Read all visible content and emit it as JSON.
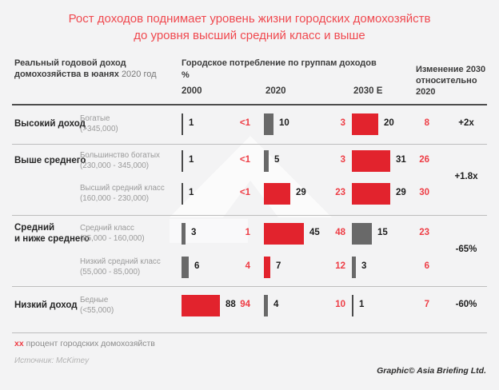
{
  "title": {
    "line1": "Рост доходов поднимает уровень жизни городских домохозяйств",
    "line2": "до уровня высший средний класс и выше"
  },
  "headers": {
    "income_line1": "Реальный годовой доход",
    "income_line2": "домохозяйства в юанях",
    "income_year": "2020 год",
    "consumption": "Городское потребление по группам доходов",
    "unit": "%",
    "change": "Изменение 2030 относительно 2020"
  },
  "footer": {
    "legend_marker": "xx",
    "legend_text": "процент городских домохозяйств",
    "source": "Источник: McKimey",
    "credit": "Graphic© Asia Briefing Ltd."
  },
  "colors": {
    "accent_red_bar": "#e2232d",
    "red_text": "#ee3d45",
    "gray_bar": "#696969",
    "dark_bar": "#4a4a4a",
    "title_red": "#f0494f"
  },
  "chart_data": {
    "type": "bar",
    "title": "Городское потребление по группам доходов",
    "unit": "%",
    "years": [
      "2000",
      "2020",
      "2030 E"
    ],
    "change_label": "Изменение 2030 относительно 2020",
    "note": "xx процент городских домохозяйств",
    "groups": [
      {
        "label_lines": [
          "Высокий доход"
        ],
        "change": "+2x",
        "segments": [
          {
            "name": "Богатые",
            "range": "(>345,000)",
            "consumption": {
              "y2000": "1",
              "y2020": "10",
              "y2030": "20"
            },
            "households": {
              "hh2020": "<1",
              "hh2030": "3",
              "hh_right": "8"
            },
            "bar_styles": [
              "dark",
              "gray",
              "red"
            ]
          }
        ]
      },
      {
        "label_lines": [
          "Выше среднего"
        ],
        "change": "+1.8x",
        "segments": [
          {
            "name": "Большинство богатых",
            "range": "(230,000 - 345,000)",
            "consumption": {
              "y2000": "1",
              "y2020": "5",
              "y2030": "31"
            },
            "households": {
              "hh2020": "<1",
              "hh2030": "3",
              "hh_right": "26"
            },
            "bar_styles": [
              "dark",
              "gray",
              "red"
            ]
          },
          {
            "name": "Высший средний класс",
            "range": "(160,000 - 230,000)",
            "consumption": {
              "y2000": "1",
              "y2020": "29",
              "y2030": "29"
            },
            "households": {
              "hh2020": "<1",
              "hh2030": "23",
              "hh_right": "30"
            },
            "bar_styles": [
              "dark",
              "red",
              "red"
            ]
          }
        ]
      },
      {
        "label_lines": [
          "Средний",
          "и ниже среднего"
        ],
        "change": "-65%",
        "segments": [
          {
            "name": "Средний класс",
            "range": "(85,000 - 160,000)",
            "consumption": {
              "y2000": "3",
              "y2020": "45",
              "y2030": "15"
            },
            "households": {
              "hh2020": "1",
              "hh2030": "48",
              "hh_right": "23"
            },
            "bar_styles": [
              "gray",
              "red",
              "gray"
            ]
          },
          {
            "name": "Низкий средний класс",
            "range": "(55,000 - 85,000)",
            "consumption": {
              "y2000": "6",
              "y2020": "7",
              "y2030": "3"
            },
            "households": {
              "hh2020": "4",
              "hh2030": "12",
              "hh_right": "6"
            },
            "bar_styles": [
              "gray",
              "red",
              "gray"
            ]
          }
        ]
      },
      {
        "label_lines": [
          "Низкий доход"
        ],
        "change": "-60%",
        "segments": [
          {
            "name": "Бедные",
            "range": "(<55,000)",
            "consumption": {
              "y2000": "88",
              "y2020": "4",
              "y2030": "1"
            },
            "households": {
              "hh2020": "94",
              "hh2030": "10",
              "hh_right": "7"
            },
            "bar_styles": [
              "red",
              "gray",
              "dark"
            ]
          }
        ]
      }
    ]
  }
}
